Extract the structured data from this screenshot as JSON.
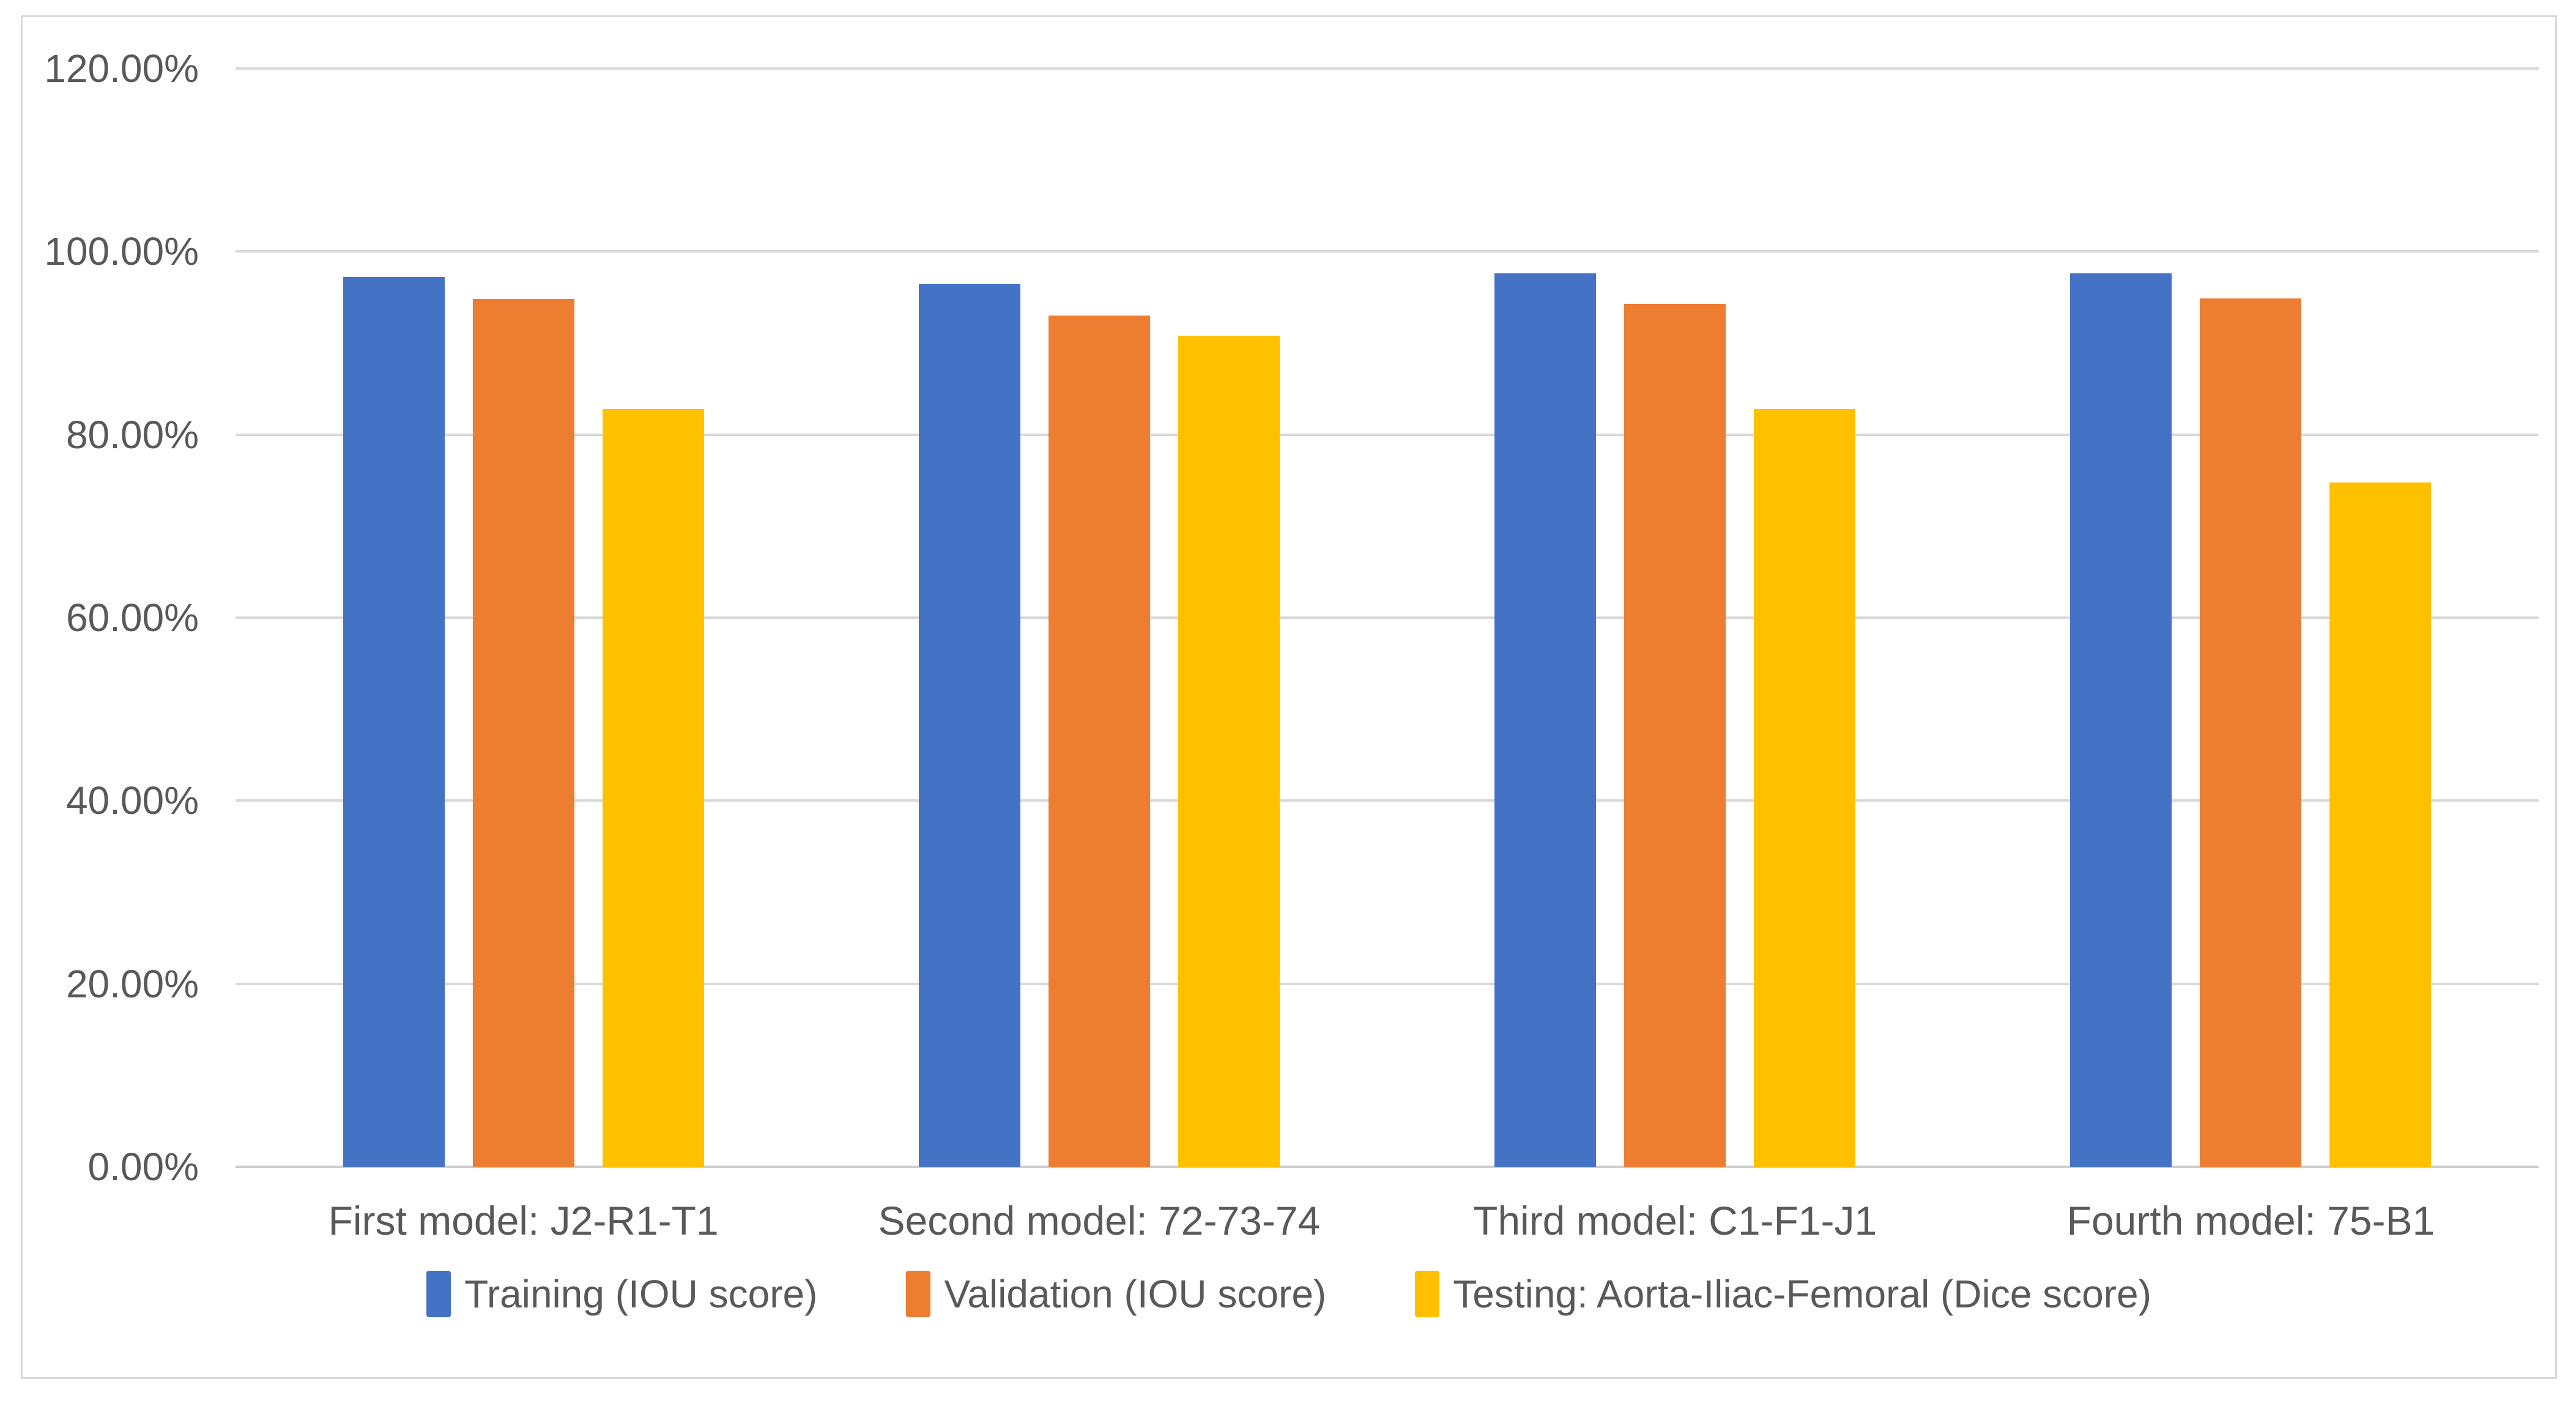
{
  "chart_data": {
    "type": "bar",
    "title": "",
    "xlabel": "",
    "ylabel": "",
    "categories": [
      "First model: J2-R1-T1",
      "Second model: 72-73-74",
      "Third model: C1-F1-J1",
      "Fourth model: 75-B1"
    ],
    "series": [
      {
        "name": "Training (IOU score)",
        "color": "#4472C4",
        "values": [
          97.2,
          96.5,
          97.6,
          97.6
        ]
      },
      {
        "name": "Validation (IOU score)",
        "color": "#ED7D31",
        "values": [
          94.8,
          93.0,
          94.3,
          94.9
        ]
      },
      {
        "name": "Testing: Aorta-Iliac-Femoral (Dice score)",
        "color": "#FFC000",
        "values": [
          82.8,
          90.8,
          82.8,
          74.8
        ]
      }
    ],
    "y_axis": {
      "min": 0,
      "max": 120,
      "step": 20,
      "tick_labels": [
        "0.00%",
        "20.00%",
        "40.00%",
        "60.00%",
        "80.00%",
        "100.00%",
        "120.00%"
      ]
    },
    "grid": true,
    "legend_position": "bottom",
    "colors": {
      "gridline": "#D9D9D9",
      "axis_line": "#CFCFCF",
      "text": "#595959",
      "frame_border": "#D9D9D9",
      "background": "#FFFFFF"
    }
  }
}
